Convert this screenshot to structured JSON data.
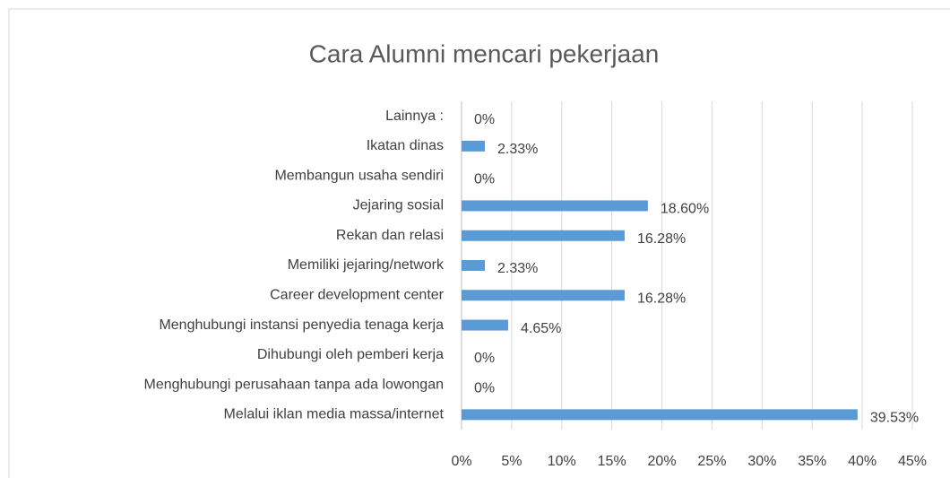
{
  "chart_data": {
    "type": "barh",
    "title": "Cara Alumni mencari pekerjaan",
    "categories": [
      "Lainnya :",
      "Ikatan dinas",
      "Membangun usaha sendiri",
      "Jejaring sosial",
      "Rekan dan relasi",
      "Memiliki jejaring/network",
      "Career development center",
      "Menghubungi instansi penyedia tenaga kerja",
      "Dihubungi oleh pemberi kerja",
      "Menghubungi perusahaan tanpa ada lowongan",
      "Melalui iklan media massa/internet"
    ],
    "values": [
      0,
      2.33,
      0,
      18.6,
      16.28,
      2.33,
      16.28,
      4.65,
      0,
      0,
      39.53
    ],
    "value_labels": [
      "0%",
      "2.33%",
      "0%",
      "18.60%",
      "16.28%",
      "2.33%",
      "16.28%",
      "4.65%",
      "0%",
      "0%",
      "39.53%"
    ],
    "color": "#5b9bd5",
    "xlim": [
      0,
      45
    ],
    "xticks": [
      {
        "value": 0,
        "label": "0%"
      },
      {
        "value": 5,
        "label": "5%"
      },
      {
        "value": 10,
        "label": "10%"
      },
      {
        "value": 15,
        "label": "15%"
      },
      {
        "value": 20,
        "label": "20%"
      },
      {
        "value": 25,
        "label": "25%"
      },
      {
        "value": 30,
        "label": "30%"
      },
      {
        "value": 35,
        "label": "35%"
      },
      {
        "value": 40,
        "label": "40%"
      },
      {
        "value": 45,
        "label": "45%"
      }
    ],
    "grid": true
  }
}
